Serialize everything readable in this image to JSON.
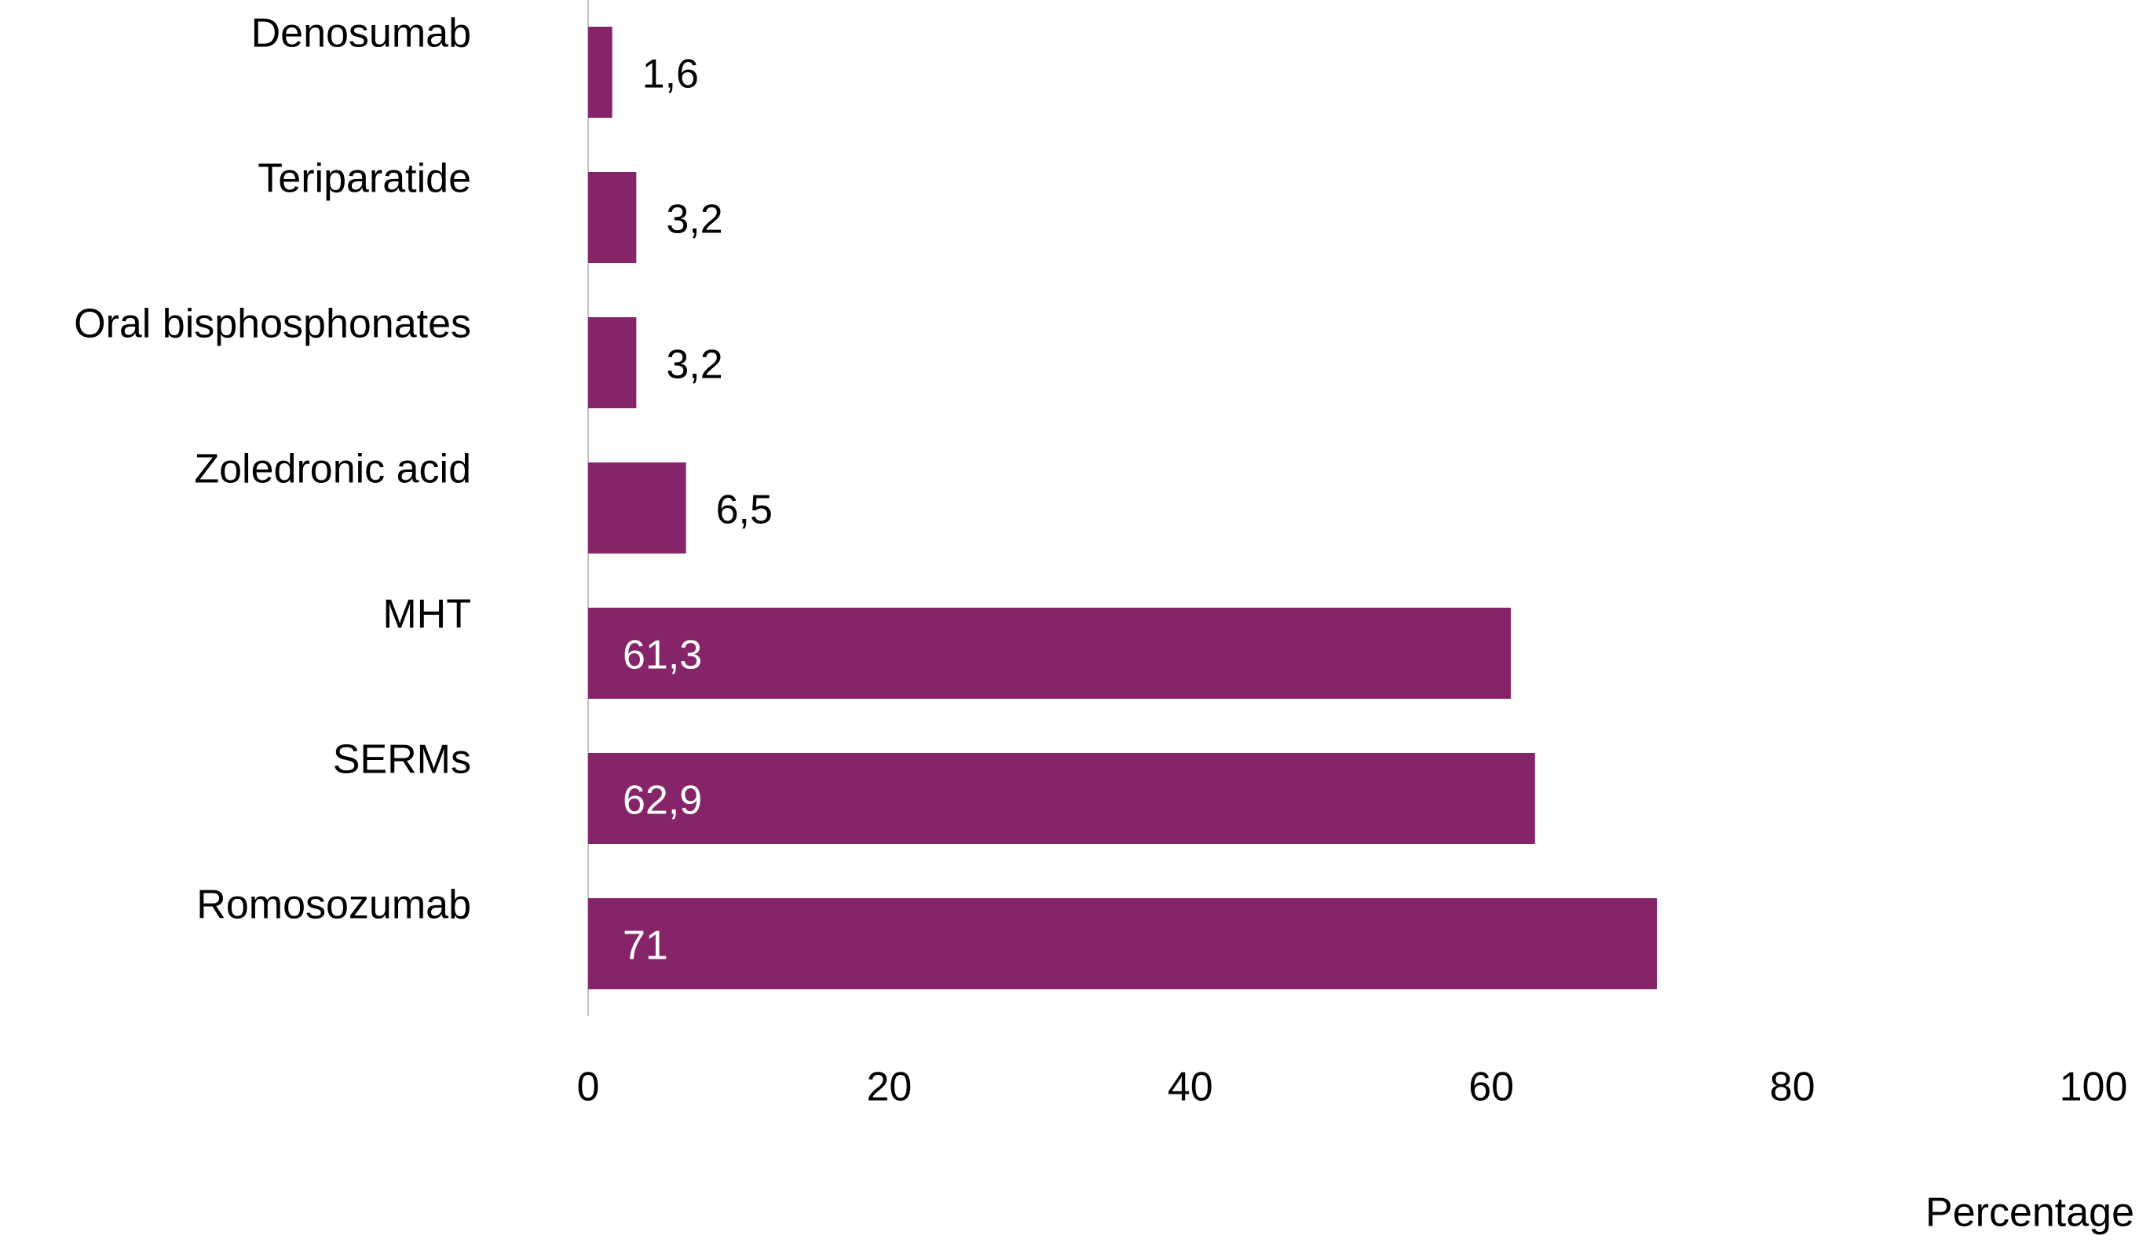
{
  "chart_data": {
    "type": "bar",
    "orientation": "horizontal",
    "categories": [
      "Denosumab",
      "Teriparatide",
      "Oral bisphosphonates",
      "Zoledronic acid",
      "MHT",
      "SERMs",
      "Romosozumab"
    ],
    "values": [
      1.6,
      3.2,
      3.2,
      6.5,
      61.3,
      62.9,
      71
    ],
    "value_labels": [
      "1,6",
      "3,2",
      "3,2",
      "6,5",
      "61,3",
      "62,9",
      "71"
    ],
    "color": "#86246a",
    "xlim": [
      0,
      100
    ],
    "xticks": [
      0,
      20,
      40,
      60,
      80,
      100
    ],
    "x_label": "Percentage",
    "grid": false
  }
}
